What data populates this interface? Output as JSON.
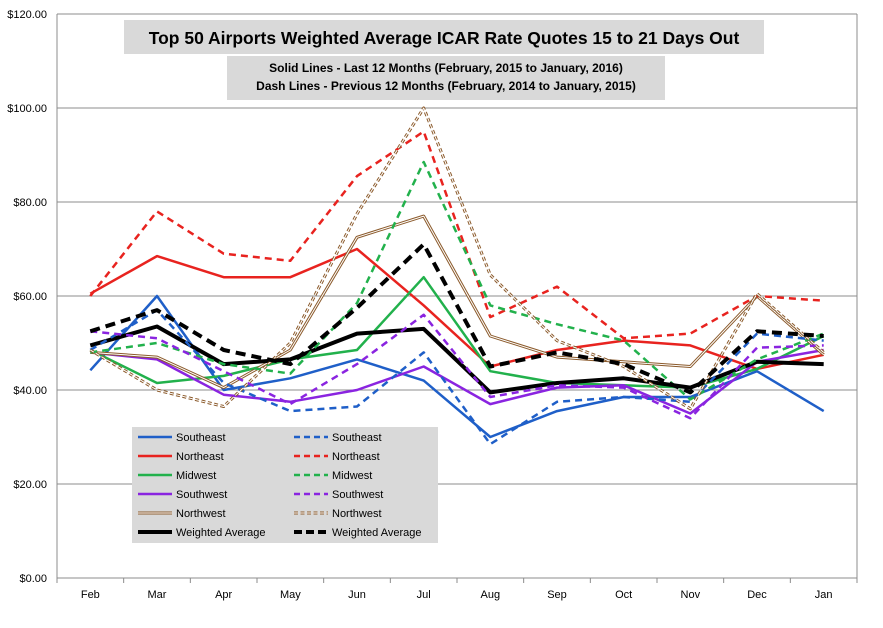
{
  "chart_data": {
    "type": "line",
    "title": "Top 50 Airports Weighted Average ICAR Rate Quotes 15 to 21 Days Out",
    "subtitle_lines": [
      "Solid Lines - Last 12 Months  (February, 2015  to January, 2016)",
      "Dash Lines - Previous 12 Months (February, 2014  to January, 2015)"
    ],
    "xlabel": "",
    "ylabel": "",
    "categories": [
      "Feb",
      "Mar",
      "Apr",
      "May",
      "Jun",
      "Jul",
      "Aug",
      "Sep",
      "Oct",
      "Nov",
      "Dec",
      "Jan"
    ],
    "y_ticks": [
      "$0.00",
      "$20.00",
      "$40.00",
      "$60.00",
      "$80.00",
      "$100.00",
      "$120.00"
    ],
    "ylim": [
      0,
      120
    ],
    "grid": true,
    "legend_placement": "bottom-left",
    "series": [
      {
        "name": "Southeast",
        "style": "solid",
        "color": "#1f5fc8",
        "values": [
          44.2,
          60.0,
          40.0,
          42.5,
          46.5,
          42.0,
          30.0,
          35.5,
          38.5,
          38.5,
          44.0,
          35.5
        ]
      },
      {
        "name": "Northeast",
        "style": "solid",
        "color": "#e8231f",
        "values": [
          60.5,
          68.5,
          64.0,
          64.0,
          70.0,
          58.0,
          45.0,
          48.5,
          50.5,
          49.5,
          44.5,
          47.5
        ]
      },
      {
        "name": "Midwest",
        "style": "solid",
        "color": "#22b14c",
        "values": [
          48.5,
          41.5,
          43.0,
          46.5,
          48.5,
          64.0,
          44.0,
          41.5,
          41.0,
          40.5,
          44.5,
          51.5
        ]
      },
      {
        "name": "Southwest",
        "style": "solid",
        "color": "#8a24e0",
        "values": [
          48.0,
          46.5,
          39.0,
          37.5,
          40.0,
          45.0,
          37.0,
          40.5,
          41.0,
          35.0,
          46.0,
          48.5
        ]
      },
      {
        "name": "Northwest",
        "style": "solid",
        "color": "#8b5a2b",
        "values": [
          48.0,
          47.0,
          40.5,
          48.5,
          72.5,
          77.0,
          51.5,
          47.0,
          46.0,
          45.0,
          60.0,
          47.5
        ]
      },
      {
        "name": "Weighted Average",
        "style": "solid",
        "color": "#000000",
        "values": [
          49.5,
          53.5,
          45.5,
          46.5,
          52.0,
          53.0,
          39.5,
          41.5,
          42.5,
          40.5,
          46.0,
          45.5
        ]
      },
      {
        "name": "Southeast",
        "style": "dash",
        "color": "#1f5fc8",
        "values": [
          48.5,
          57.0,
          41.5,
          35.5,
          36.5,
          48.0,
          28.5,
          37.5,
          38.5,
          37.5,
          52.0,
          50.5
        ]
      },
      {
        "name": "Northeast",
        "style": "dash",
        "color": "#e8231f",
        "values": [
          60.0,
          78.0,
          69.0,
          67.5,
          85.5,
          95.0,
          55.5,
          62.0,
          51.0,
          52.0,
          60.0,
          59.0
        ]
      },
      {
        "name": "Midwest",
        "style": "dash",
        "color": "#22b14c",
        "values": [
          48.0,
          50.0,
          45.5,
          43.5,
          58.5,
          88.5,
          58.0,
          54.0,
          50.5,
          38.0,
          46.5,
          52.0
        ]
      },
      {
        "name": "Southwest",
        "style": "dash",
        "color": "#8a24e0",
        "values": [
          52.5,
          51.0,
          44.0,
          37.0,
          45.5,
          56.0,
          38.5,
          41.0,
          40.5,
          34.0,
          49.0,
          49.5
        ]
      },
      {
        "name": "Northwest",
        "style": "dash",
        "color": "#8b5a2b",
        "values": [
          48.5,
          40.0,
          36.5,
          50.0,
          77.5,
          100.0,
          64.5,
          50.5,
          45.0,
          36.0,
          60.5,
          48.0
        ]
      },
      {
        "name": "Weighted Average",
        "style": "dash",
        "color": "#000000",
        "values": [
          52.5,
          57.0,
          48.5,
          45.5,
          57.5,
          71.0,
          45.0,
          48.0,
          45.5,
          39.5,
          52.5,
          51.5
        ]
      }
    ]
  }
}
